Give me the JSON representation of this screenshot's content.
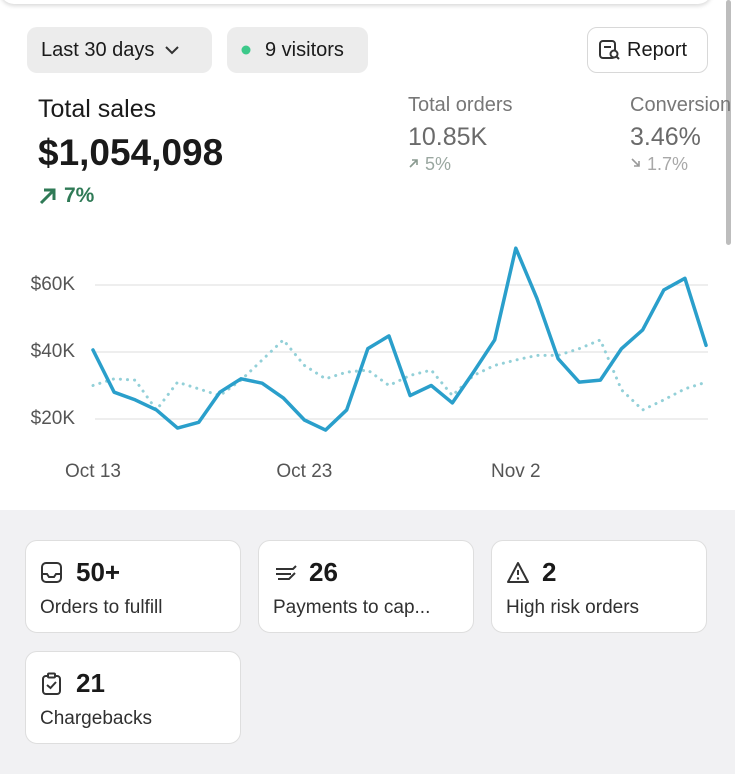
{
  "filters": {
    "date_range": "Last 30 days",
    "visitors": "9 visitors",
    "report": "Report"
  },
  "metrics": [
    {
      "label": "Total sales",
      "value": "$1,054,098",
      "change": "7%"
    },
    {
      "label": "Total orders",
      "value": "10.85K",
      "change": "5%"
    },
    {
      "label": "Conversion rate",
      "value": "3.46%",
      "change": "1.7%"
    }
  ],
  "chart_data": {
    "type": "line",
    "categories": [
      "Oct 13",
      null,
      null,
      null,
      null,
      null,
      null,
      null,
      null,
      null,
      "Oct 23",
      null,
      null,
      null,
      null,
      null,
      null,
      null,
      null,
      null,
      "Nov 2",
      null,
      null,
      null,
      null,
      null,
      null,
      null,
      null,
      null
    ],
    "series": [
      {
        "color": "#2a9fcb",
        "dash": "solid",
        "values": [
          40600,
          28000,
          25700,
          22700,
          17300,
          19000,
          28000,
          32000,
          30700,
          26300,
          19700,
          16700,
          22700,
          41000,
          44800,
          27000,
          30000,
          24800,
          34000,
          43600,
          71000,
          56000,
          38000,
          31000,
          31600,
          41000,
          46600,
          58500,
          62000,
          42000
        ]
      },
      {
        "color": "#93d0d8",
        "dash": "dotted",
        "values": [
          30000,
          32000,
          31600,
          22700,
          31000,
          29000,
          27000,
          31600,
          37600,
          43600,
          36000,
          32000,
          34000,
          34600,
          30000,
          33000,
          34600,
          27000,
          33000,
          36000,
          37600,
          39000,
          39000,
          41000,
          43600,
          28700,
          22700,
          25700,
          29000,
          31000
        ]
      }
    ],
    "ylim": [
      10000,
      73000
    ],
    "yticks": [
      {
        "value": 20000,
        "label": "$20K"
      },
      {
        "value": 40000,
        "label": "$40K"
      },
      {
        "value": 60000,
        "label": "$60K"
      }
    ],
    "grid": true
  },
  "cards": [
    {
      "count": "50+",
      "label": "Orders to fulfill"
    },
    {
      "count": "26",
      "label": "Payments to cap..."
    },
    {
      "count": "2",
      "label": "High risk orders"
    },
    {
      "count": "21",
      "label": "Chargebacks"
    }
  ]
}
